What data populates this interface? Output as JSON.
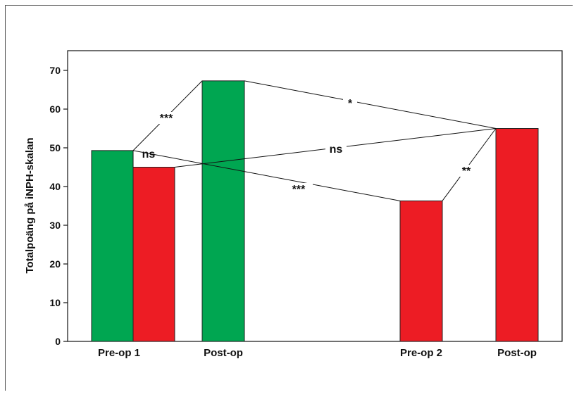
{
  "chart_data": {
    "type": "bar",
    "ylabel": "Totalpoäng på iNPH-skalan",
    "ylim": [
      0,
      70
    ],
    "yticks": [
      0,
      10,
      20,
      30,
      40,
      50,
      60,
      70
    ],
    "categories": [
      "Pre-op 1",
      "Post-op",
      "Pre-op 2",
      "Post-op"
    ],
    "colors": {
      "green": "#00a651",
      "red": "#ed1c24"
    },
    "bars": [
      {
        "category": 0,
        "color": "green",
        "value": 49.3
      },
      {
        "category": 0,
        "color": "red",
        "value": 45
      },
      {
        "category": 1,
        "color": "green",
        "value": 67.3
      },
      {
        "category": 2,
        "color": "red",
        "value": 36.3
      },
      {
        "category": 3,
        "color": "red",
        "value": 55
      }
    ],
    "comparisons": [
      {
        "from": 0,
        "to": 2,
        "label": "***"
      },
      {
        "from": 2,
        "to": 4,
        "label": "*"
      },
      {
        "from": 0,
        "to": 1,
        "label": "ns"
      },
      {
        "from": 1,
        "to": 4,
        "label": "ns"
      },
      {
        "from": 0,
        "to": 3,
        "label": "***"
      },
      {
        "from": 3,
        "to": 4,
        "label": "**"
      }
    ]
  }
}
